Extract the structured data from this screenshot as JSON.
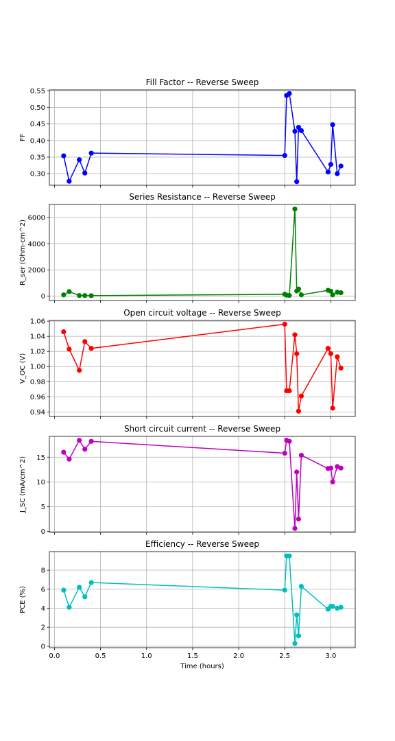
{
  "chart_data": [
    {
      "type": "line",
      "title": "Fill Factor -- Reverse Sweep",
      "ylabel": "FF",
      "xlabel": "",
      "color": "#0000ff",
      "ylim": [
        0.265,
        0.553
      ],
      "yticks": [
        0.3,
        0.35,
        0.4,
        0.45,
        0.5,
        0.55
      ],
      "ytick_labels": [
        "0.30",
        "0.35",
        "0.40",
        "0.45",
        "0.50",
        "0.55"
      ],
      "x": [
        0.1,
        0.16,
        0.27,
        0.33,
        0.4,
        2.5,
        2.52,
        2.55,
        2.61,
        2.63,
        2.65,
        2.68,
        2.97,
        3.0,
        3.02,
        3.07,
        3.11
      ],
      "y": [
        0.354,
        0.277,
        0.342,
        0.302,
        0.362,
        0.355,
        0.536,
        0.542,
        0.428,
        0.276,
        0.44,
        0.43,
        0.305,
        0.328,
        0.448,
        0.3,
        0.323
      ]
    },
    {
      "type": "line",
      "title": "Series Resistance -- Reverse Sweep",
      "ylabel": "R_ser (Ohm-cm^2)",
      "xlabel": "",
      "color": "#008000",
      "ylim": [
        -330,
        7000
      ],
      "yticks": [
        0,
        2000,
        4000,
        6000
      ],
      "ytick_labels": [
        "0",
        "2000",
        "4000",
        "6000"
      ],
      "x": [
        0.1,
        0.16,
        0.27,
        0.33,
        0.4,
        2.5,
        2.52,
        2.55,
        2.61,
        2.63,
        2.65,
        2.68,
        2.97,
        3.0,
        3.02,
        3.07,
        3.11
      ],
      "y": [
        100,
        350,
        50,
        50,
        40,
        150,
        80,
        60,
        6650,
        400,
        550,
        100,
        450,
        380,
        100,
        300,
        270
      ]
    },
    {
      "type": "line",
      "title": "Open circuit voltage -- Reverse Sweep",
      "ylabel": "V_OC (V)",
      "xlabel": "",
      "color": "#ff0000",
      "ylim": [
        0.934,
        1.061
      ],
      "yticks": [
        0.94,
        0.96,
        0.98,
        1.0,
        1.02,
        1.04,
        1.06
      ],
      "ytick_labels": [
        "0.94",
        "0.96",
        "0.98",
        "1.00",
        "1.02",
        "1.04",
        "1.06"
      ],
      "x": [
        0.1,
        0.16,
        0.27,
        0.33,
        0.4,
        2.5,
        2.52,
        2.55,
        2.61,
        2.63,
        2.65,
        2.68,
        2.97,
        3.0,
        3.02,
        3.07,
        3.11
      ],
      "y": [
        1.046,
        1.023,
        0.995,
        1.033,
        1.024,
        1.056,
        0.968,
        0.968,
        1.042,
        1.017,
        0.941,
        0.961,
        1.024,
        1.017,
        0.945,
        1.013,
        0.998
      ]
    },
    {
      "type": "line",
      "title": "Short circuit current -- Reverse Sweep",
      "ylabel": "J_SC (mA/cm^2)",
      "xlabel": "",
      "color": "#bf00bf",
      "ylim": [
        -0.2,
        19.2
      ],
      "yticks": [
        0,
        5,
        10,
        15
      ],
      "ytick_labels": [
        "0",
        "5",
        "10",
        "15"
      ],
      "x": [
        0.1,
        0.16,
        0.27,
        0.33,
        0.4,
        2.5,
        2.52,
        2.55,
        2.61,
        2.63,
        2.65,
        2.68,
        2.97,
        3.0,
        3.02,
        3.07,
        3.11
      ],
      "y": [
        16.0,
        14.6,
        18.4,
        16.6,
        18.2,
        15.8,
        18.4,
        18.2,
        0.6,
        12.0,
        2.5,
        15.4,
        12.7,
        12.8,
        10.0,
        13.1,
        12.8
      ]
    },
    {
      "type": "line",
      "title": "Efficiency -- Reverse Sweep",
      "ylabel": "PCE (%)",
      "xlabel": "Time (hours)",
      "color": "#00bfbf",
      "ylim": [
        -0.15,
        9.95
      ],
      "yticks": [
        0,
        2,
        4,
        6,
        8
      ],
      "ytick_labels": [
        "0",
        "2",
        "4",
        "6",
        "8"
      ],
      "x": [
        0.1,
        0.16,
        0.27,
        0.33,
        0.4,
        2.5,
        2.52,
        2.55,
        2.61,
        2.63,
        2.65,
        2.68,
        2.97,
        3.0,
        3.02,
        3.07,
        3.11
      ],
      "y": [
        5.9,
        4.1,
        6.2,
        5.2,
        6.7,
        5.9,
        9.5,
        9.5,
        0.3,
        3.3,
        1.1,
        6.3,
        3.9,
        4.2,
        4.2,
        4.0,
        4.1
      ]
    }
  ],
  "xaxis": {
    "xlim": [
      -0.055,
      3.265
    ],
    "xticks": [
      0.0,
      0.5,
      1.0,
      1.5,
      2.0,
      2.5,
      3.0
    ],
    "xtick_labels": [
      "0.0",
      "0.5",
      "1.0",
      "1.5",
      "2.0",
      "2.5",
      "3.0"
    ],
    "grid": true
  }
}
